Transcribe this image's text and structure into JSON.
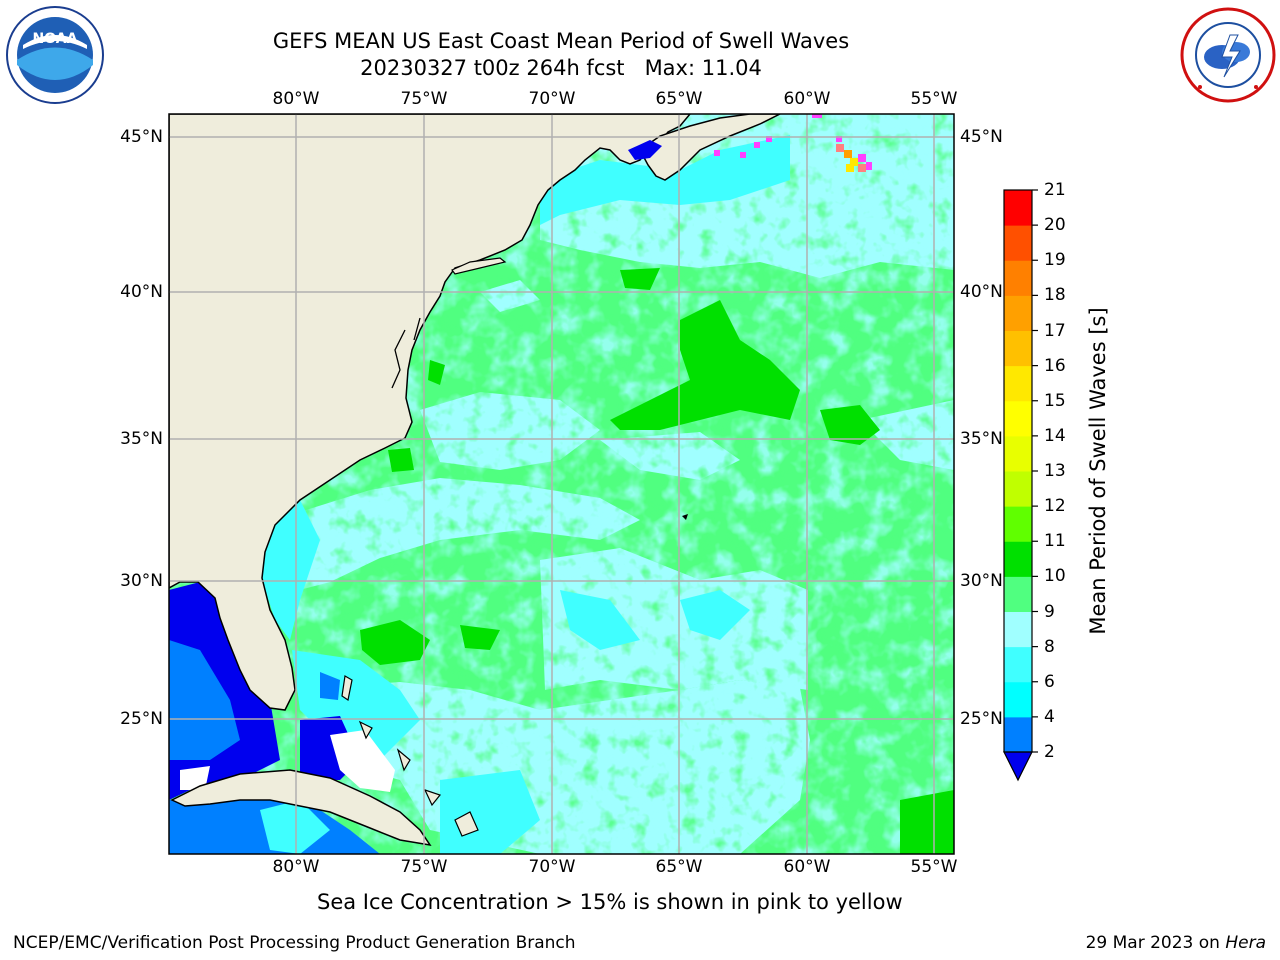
{
  "title": {
    "line1": "GEFS MEAN US East Coast Mean Period of Swell Waves",
    "line2": "20230327 t00z 264h fcst   Max: 11.04"
  },
  "logos": {
    "left": {
      "icon": "noaa-logo",
      "text": "NOAA",
      "ring_text": "NATIONAL OCEANIC AND ATMOSPHERIC ADMINISTRATION · U.S. DEPARTMENT OF COMMERCE"
    },
    "right": {
      "icon": "nws-logo",
      "ring_text": "NATIONAL WEATHER SERVICE"
    }
  },
  "map": {
    "lon_ticks": [
      "80°W",
      "75°W",
      "70°W",
      "65°W",
      "60°W",
      "55°W"
    ],
    "lat_ticks": [
      "45°N",
      "40°N",
      "35°N",
      "30°N",
      "25°N"
    ],
    "lon_range": [
      -85,
      -54.3
    ],
    "lat_range": [
      20.5,
      45.8
    ],
    "land_color": "#efeddc",
    "gridline_color": "#b0b0b0"
  },
  "colorbar": {
    "label": "Mean Period of Swell Waves [s]",
    "ticks": [
      "2",
      "4",
      "6",
      "8",
      "9",
      "10",
      "11",
      "12",
      "13",
      "14",
      "15",
      "16",
      "17",
      "18",
      "19",
      "20",
      "21"
    ],
    "under_color": "#0000ee",
    "colors": [
      "#0080ff",
      "#00ffff",
      "#40ffff",
      "#a0ffff",
      "#50ff80",
      "#00e000",
      "#60ff00",
      "#c0ff00",
      "#e8ff00",
      "#ffff00",
      "#ffe800",
      "#ffc000",
      "#ffa000",
      "#ff8000",
      "#ff5000",
      "#ff0000"
    ]
  },
  "field_colors": {
    "deep_blue": "#0000ee",
    "blue": "#0080ff",
    "cyan": "#00ffff",
    "light_cyan": "#40ffff",
    "pale_cyan": "#a0ffff",
    "light_green": "#50ff80",
    "green": "#00e000",
    "sea_ice": "#ff40ff"
  },
  "note": "Sea Ice Concentration > 15% is shown in pink to yellow",
  "footer": {
    "left": "NCEP/EMC/Verification Post Processing Product Generation Branch",
    "right_date": "29 Mar 2023 on ",
    "right_host": "Hera"
  }
}
